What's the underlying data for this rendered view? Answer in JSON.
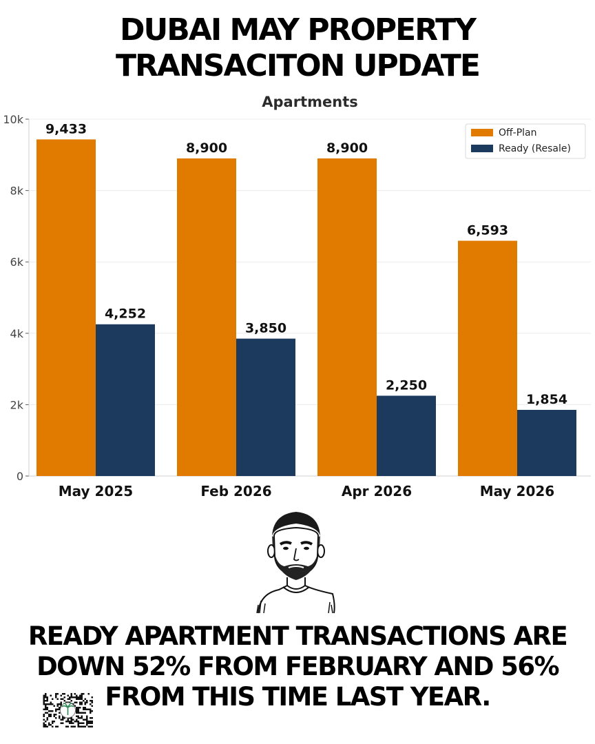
{
  "header": {
    "title_lines": [
      "DUBAI MAY PROPERTY",
      "TRANSACITON UPDATE"
    ]
  },
  "chart_data": {
    "type": "bar",
    "title": "Apartments",
    "categories": [
      "May 2025",
      "Feb 2026",
      "Apr 2026",
      "May 2026"
    ],
    "series": [
      {
        "name": "Off-Plan",
        "color": "#E07B00",
        "values": [
          9433,
          8900,
          8900,
          6593
        ],
        "labels": [
          "9,433",
          "8,900",
          "8,900",
          "6,593"
        ]
      },
      {
        "name": "Ready (Resale)",
        "color": "#1B3A5E",
        "values": [
          4252,
          3850,
          2250,
          1854
        ],
        "labels": [
          "4,252",
          "3,850",
          "2,250",
          "1,854"
        ]
      }
    ],
    "ylim": [
      0,
      10000
    ],
    "yticks": [
      0,
      2000,
      4000,
      6000,
      8000,
      10000
    ],
    "ytick_labels": [
      "0",
      "2k",
      "4k",
      "6k",
      "8k",
      "10k"
    ],
    "grid": true,
    "legend_position": "top-right"
  },
  "footer": {
    "caption_lines": [
      "READY APARTMENT TRANSACTIONS ARE",
      "DOWN 52% FROM FEBRUARY AND 56%",
      "FROM THIS TIME LAST YEAR."
    ]
  }
}
